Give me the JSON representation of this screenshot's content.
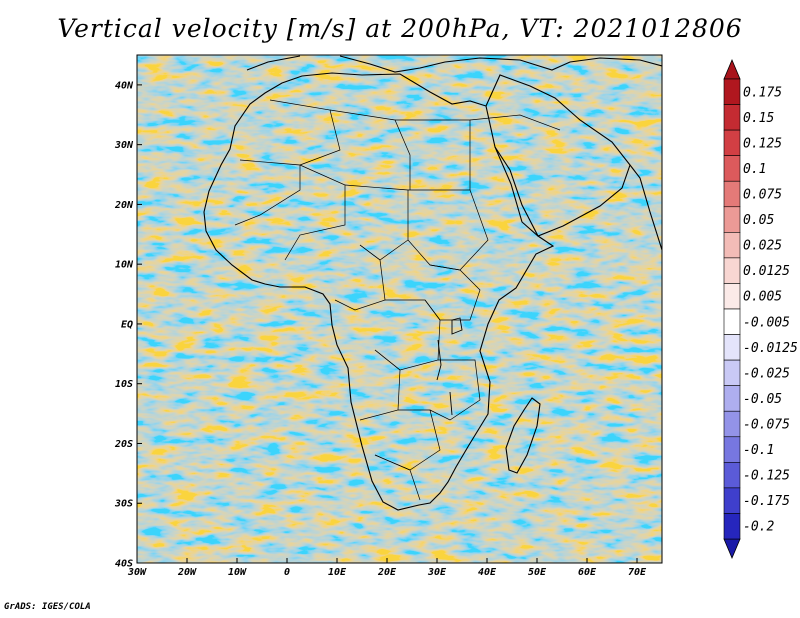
{
  "title": "Vertical velocity [m/s] at 200hPa, VT: 2021012806",
  "footer": "GrADS: IGES/COLA",
  "map": {
    "lon_range": [
      -30,
      75
    ],
    "lat_range": [
      -40,
      45
    ],
    "lat_ticks": [
      {
        "value": 40,
        "label": "40N"
      },
      {
        "value": 30,
        "label": "30N"
      },
      {
        "value": 20,
        "label": "20N"
      },
      {
        "value": 10,
        "label": "10N"
      },
      {
        "value": 0,
        "label": "EQ"
      },
      {
        "value": -10,
        "label": "10S"
      },
      {
        "value": -20,
        "label": "20S"
      },
      {
        "value": -30,
        "label": "30S"
      },
      {
        "value": -40,
        "label": "40S"
      }
    ],
    "lon_ticks": [
      {
        "value": -30,
        "label": "30W"
      },
      {
        "value": -20,
        "label": "20W"
      },
      {
        "value": -10,
        "label": "10W"
      },
      {
        "value": 0,
        "label": "0"
      },
      {
        "value": 10,
        "label": "10E"
      },
      {
        "value": 20,
        "label": "20E"
      },
      {
        "value": 30,
        "label": "30E"
      },
      {
        "value": 40,
        "label": "40E"
      },
      {
        "value": 50,
        "label": "50E"
      },
      {
        "value": 60,
        "label": "60E"
      },
      {
        "value": 70,
        "label": "70E"
      }
    ]
  },
  "colorbar": {
    "levels": [
      {
        "label": "0.175",
        "color": "#b0171f"
      },
      {
        "label": "0.15",
        "color": "#c42b32"
      },
      {
        "label": "0.125",
        "color": "#d23f44"
      },
      {
        "label": "0.1",
        "color": "#dc5a5c"
      },
      {
        "label": "0.075",
        "color": "#e47a78"
      },
      {
        "label": "0.05",
        "color": "#ec9a96"
      },
      {
        "label": "0.025",
        "color": "#f3bcb7"
      },
      {
        "label": "0.0125",
        "color": "#f8d6d2"
      },
      {
        "label": "0.005",
        "color": "#fbeae8"
      },
      {
        "label": "-0.005",
        "color": "#ffffff"
      },
      {
        "label": "-0.0125",
        "color": "#e4e4fb"
      },
      {
        "label": "-0.025",
        "color": "#c9c9f5"
      },
      {
        "label": "-0.05",
        "color": "#aeaeef"
      },
      {
        "label": "-0.075",
        "color": "#9393e8"
      },
      {
        "label": "-0.1",
        "color": "#7777e0"
      },
      {
        "label": "-0.125",
        "color": "#5b5bd8"
      },
      {
        "label": "-0.175",
        "color": "#3f3fcc"
      },
      {
        "label": "-0.2",
        "color": "#2626bd"
      }
    ],
    "arrow_top_color": "#a8141c",
    "arrow_bottom_color": "#1a1aa8"
  }
}
